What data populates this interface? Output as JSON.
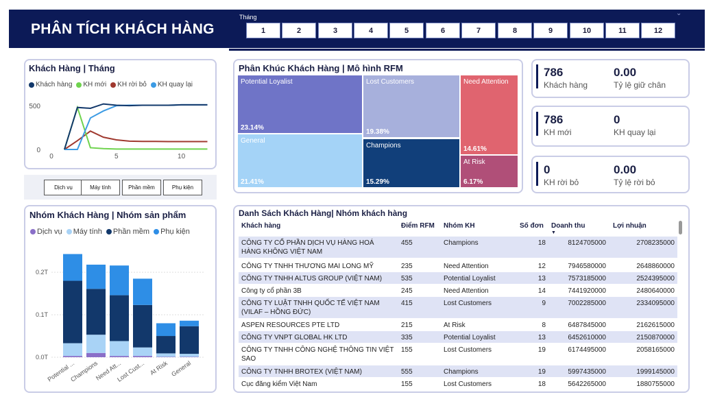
{
  "header": {
    "title": "PHÂN TÍCH KHÁCH HÀNG",
    "slicer_label": "Tháng",
    "months": [
      "1",
      "2",
      "3",
      "4",
      "5",
      "6",
      "7",
      "8",
      "9",
      "10",
      "11",
      "12"
    ],
    "chevron": "chevron-down-icon"
  },
  "line_card": {
    "title": "Khách Hàng | Tháng",
    "legend": [
      "Khách hàng",
      "KH mới",
      "KH rời bỏ",
      "KH quay lại"
    ],
    "colors": [
      "#12386b",
      "#6fd34e",
      "#a0392f",
      "#3c9be4"
    ],
    "y_ticks": [
      "500",
      "0"
    ],
    "x_ticks": [
      "0",
      "5",
      "10"
    ]
  },
  "product_buttons": [
    "Dịch vụ",
    "Máy tính",
    "Phần mềm",
    "Phụ kiện"
  ],
  "bar_card": {
    "title": "Nhóm Khách Hàng | Nhóm sản phẩm",
    "legend": [
      "Dịch vụ",
      "Máy tính",
      "Phần mềm",
      "Phụ kiện"
    ],
    "colors": [
      "#8a6fc8",
      "#a9d3f6",
      "#12386b",
      "#2e8ee6"
    ],
    "y_ticks": [
      "0.2T",
      "0.1T",
      "0.0T"
    ]
  },
  "treemap": {
    "title": "Phân Khúc Khách Hàng | Mô hình RFM",
    "tiles": [
      {
        "label": "Potential Loyalist",
        "pct": "23.14%",
        "color": "#6f74c7"
      },
      {
        "label": "General",
        "pct": "21.41%",
        "color": "#a4d3f7"
      },
      {
        "label": "Lost Customers",
        "pct": "19.38%",
        "color": "#a7b0dc"
      },
      {
        "label": "Champions",
        "pct": "15.29%",
        "color": "#113f7a"
      },
      {
        "label": "Need Attention",
        "pct": "14.61%",
        "color": "#e0646f"
      },
      {
        "label": "At Risk",
        "pct": "6.17%",
        "color": "#b04f78"
      }
    ]
  },
  "kpis": [
    {
      "v1": "786",
      "l1": "Khách hàng",
      "v2": "0.00",
      "l2": "Tỷ lệ giữ chân"
    },
    {
      "v1": "786",
      "l1": "KH mới",
      "v2": "0",
      "l2": "KH quay lại"
    },
    {
      "v1": "0",
      "l1": "KH rời bỏ",
      "v2": "0.00",
      "l2": "Tỷ lệ rời bỏ"
    }
  ],
  "table": {
    "title": "Danh Sách Khách Hàng| Nhóm khách hàng",
    "headers": [
      "Khách hàng",
      "Điểm RFM",
      "Nhóm KH",
      "Số đơn",
      "Doanh thu",
      "Lợi nhuận"
    ],
    "rows": [
      [
        "CÔNG TY CỔ PHẦN DỊCH VỤ HÀNG HOÁ HÀNG KHÔNG VIỆT NAM",
        "455",
        "Champions",
        "18",
        "8124705000",
        "2708235000"
      ],
      [
        "CÔNG TY TNHH THƯƠNG MAI LONG MỸ",
        "235",
        "Need Attention",
        "12",
        "7946580000",
        "2648860000"
      ],
      [
        "CÔNG TY TNHH ALTUS GROUP (VIỆT NAM)",
        "535",
        "Potential Loyalist",
        "13",
        "7573185000",
        "2524395000"
      ],
      [
        "Công ty cổ phần 3B",
        "245",
        "Need Attention",
        "14",
        "7441920000",
        "2480640000"
      ],
      [
        "CÔNG TY LUẬT TNHH QUỐC TẾ VIỆT NAM (VILAF – HỒNG ĐỨC)",
        "415",
        "Lost Customers",
        "9",
        "7002285000",
        "2334095000"
      ],
      [
        "ASPEN RESOURCES PTE LTD",
        "215",
        "At Risk",
        "8",
        "6487845000",
        "2162615000"
      ],
      [
        "CÔNG TY VNPT GLOBAL HK LTD",
        "335",
        "Potential Loyalist",
        "13",
        "6452610000",
        "2150870000"
      ],
      [
        "CÔNG TY TNHH CÔNG NGHỆ THÔNG TIN VIỆT SAO",
        "155",
        "Lost Customers",
        "19",
        "6174495000",
        "2058165000"
      ],
      [
        "CÔNG TY TNHH BROTEX (VIỆT NAM)",
        "555",
        "Champions",
        "19",
        "5997435000",
        "1999145000"
      ],
      [
        "Cục đăng kiểm Việt Nam",
        "155",
        "Lost Customers",
        "18",
        "5642265000",
        "1880755000"
      ]
    ]
  },
  "chart_data": [
    {
      "type": "line",
      "title": "Khách Hàng | Tháng",
      "x": [
        1,
        2,
        3,
        4,
        5,
        6,
        7,
        8,
        9,
        10,
        11,
        12
      ],
      "series": [
        {
          "name": "Khách hàng",
          "values": [
            0,
            480,
            470,
            520,
            505,
            500,
            505,
            505,
            505,
            510,
            510,
            510
          ]
        },
        {
          "name": "KH mới",
          "values": [
            0,
            480,
            20,
            10,
            5,
            5,
            5,
            5,
            5,
            5,
            5,
            5
          ]
        },
        {
          "name": "KH rời bỏ",
          "values": [
            0,
            100,
            210,
            140,
            110,
            95,
            92,
            92,
            90,
            90,
            90,
            90
          ]
        },
        {
          "name": "KH quay lại",
          "values": [
            0,
            0,
            360,
            440,
            500,
            505,
            505,
            505,
            505,
            510,
            510,
            510
          ]
        }
      ],
      "xlim": [
        0,
        12.5
      ],
      "ylim": [
        0,
        650
      ],
      "x_ticks": [
        0,
        5,
        10
      ],
      "y_ticks": [
        0,
        500
      ]
    },
    {
      "type": "bar",
      "title": "Nhóm Khách Hàng | Nhóm sản phẩm",
      "categories": [
        "Potential ...",
        "Champions",
        "Need Att...",
        "Lost Cust...",
        "At Risk",
        "General"
      ],
      "series": [
        {
          "name": "Dịch vụ",
          "values": [
            0.003,
            0.01,
            0.003,
            0.003,
            0.001,
            0.001
          ]
        },
        {
          "name": "Máy tính",
          "values": [
            0.03,
            0.043,
            0.035,
            0.02,
            0.008,
            0.007
          ]
        },
        {
          "name": "Phần mềm",
          "values": [
            0.147,
            0.108,
            0.108,
            0.1,
            0.041,
            0.065
          ]
        },
        {
          "name": "Phụ kiện",
          "values": [
            0.063,
            0.057,
            0.07,
            0.062,
            0.03,
            0.013
          ]
        }
      ],
      "ylim": [
        0,
        0.26
      ],
      "y_ticks": [
        0,
        0.1,
        0.2
      ]
    }
  ]
}
